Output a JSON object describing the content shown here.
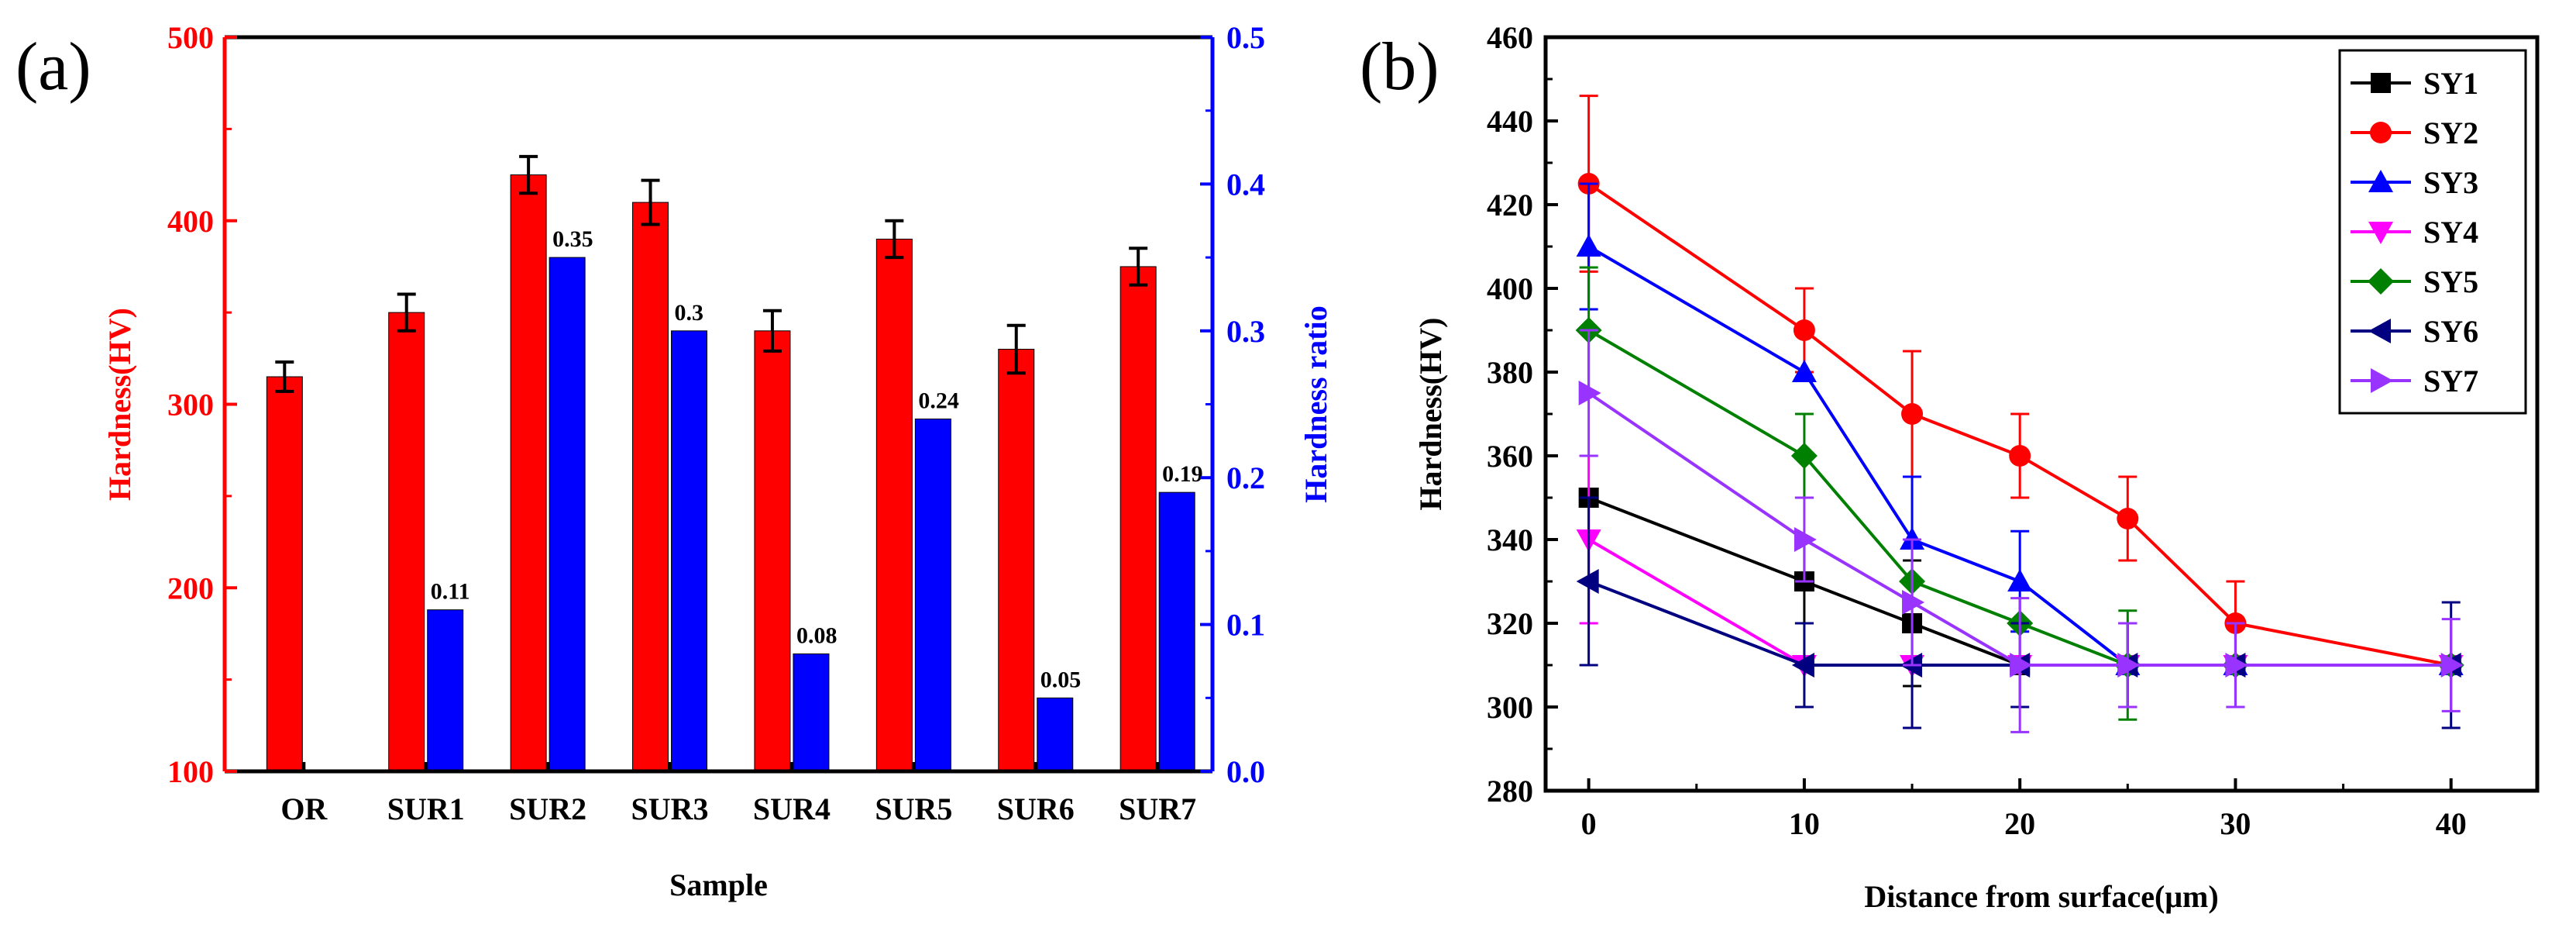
{
  "figure": {
    "panel_a_label": "(a)",
    "panel_b_label": "(b)"
  },
  "chart_data": [
    {
      "type": "bar",
      "panel": "(a)",
      "xlabel": "Sample",
      "ylabel": "Hardness(HV)",
      "y2label": "Hardness ratio",
      "categories": [
        "OR",
        "SUR1",
        "SUR2",
        "SUR3",
        "SUR4",
        "SUR5",
        "SUR6",
        "SUR7"
      ],
      "ylim": [
        100,
        500
      ],
      "yticks": [
        100,
        200,
        300,
        400,
        500
      ],
      "y2lim": [
        0.0,
        0.5
      ],
      "y2ticks": [
        "0.0",
        "0.1",
        "0.2",
        "0.3",
        "0.4",
        "0.5"
      ],
      "series": [
        {
          "color": "#ff0000",
          "axis": "left",
          "values": [
            315,
            350,
            425,
            410,
            340,
            390,
            330,
            375
          ],
          "errors": [
            8,
            10,
            10,
            12,
            11,
            10,
            13,
            10
          ]
        },
        {
          "color": "#0000ff",
          "axis": "right",
          "values": [
            null,
            0.11,
            0.35,
            0.3,
            0.08,
            0.24,
            0.05,
            0.19
          ],
          "labels": [
            "",
            "0.11",
            "0.35",
            "0.3",
            "0.08",
            "0.24",
            "0.05",
            "0.19"
          ]
        }
      ]
    },
    {
      "type": "line",
      "panel": "(b)",
      "xlabel": "Distance from surface(μm)",
      "ylabel": "Hardness(HV)",
      "xlim": [
        -2,
        44
      ],
      "ylim": [
        280,
        460
      ],
      "xticks": [
        0,
        10,
        20,
        30,
        40
      ],
      "yticks": [
        280,
        300,
        320,
        340,
        360,
        380,
        400,
        420,
        440,
        460
      ],
      "legend_position": "top-right",
      "series": [
        {
          "name": "SY1",
          "color": "#000000",
          "marker": "square",
          "x": [
            0,
            10,
            15,
            20,
            25,
            30,
            40
          ],
          "y": [
            350,
            330,
            320,
            310,
            310,
            310,
            310
          ],
          "err": [
            0,
            10,
            15,
            0,
            0,
            0,
            0
          ]
        },
        {
          "name": "SY2",
          "color": "#ff0000",
          "marker": "circle",
          "x": [
            0,
            10,
            15,
            20,
            25,
            30,
            40
          ],
          "y": [
            425,
            390,
            370,
            360,
            345,
            320,
            310
          ],
          "err": [
            21,
            10,
            15,
            10,
            10,
            10,
            0
          ]
        },
        {
          "name": "SY3",
          "color": "#0000ff",
          "marker": "triangle-up",
          "x": [
            0,
            10,
            15,
            20,
            25,
            30,
            40
          ],
          "y": [
            410,
            380,
            340,
            330,
            310,
            310,
            310
          ],
          "err": [
            15,
            0,
            15,
            12,
            0,
            0,
            0
          ]
        },
        {
          "name": "SY4",
          "color": "#ff00ff",
          "marker": "triangle-down",
          "x": [
            0,
            10,
            15,
            20,
            25,
            30,
            40
          ],
          "y": [
            340,
            310,
            310,
            310,
            310,
            310,
            310
          ],
          "err": [
            20,
            0,
            0,
            0,
            10,
            0,
            0
          ]
        },
        {
          "name": "SY5",
          "color": "#008000",
          "marker": "diamond",
          "x": [
            0,
            10,
            15,
            20,
            25,
            30,
            40
          ],
          "y": [
            390,
            360,
            330,
            320,
            310,
            310,
            310
          ],
          "err": [
            15,
            10,
            0,
            0,
            13,
            0,
            0
          ]
        },
        {
          "name": "SY6",
          "color": "#000080",
          "marker": "triangle-left",
          "x": [
            0,
            10,
            15,
            20,
            25,
            30,
            40
          ],
          "y": [
            330,
            310,
            310,
            310,
            310,
            310,
            310
          ],
          "err": [
            20,
            10,
            15,
            10,
            10,
            10,
            15
          ]
        },
        {
          "name": "SY7",
          "color": "#9933ff",
          "marker": "triangle-right",
          "x": [
            0,
            10,
            15,
            20,
            25,
            30,
            40
          ],
          "y": [
            375,
            340,
            325,
            310,
            310,
            310,
            310
          ],
          "err": [
            15,
            10,
            15,
            16,
            10,
            10,
            11
          ]
        }
      ]
    }
  ]
}
